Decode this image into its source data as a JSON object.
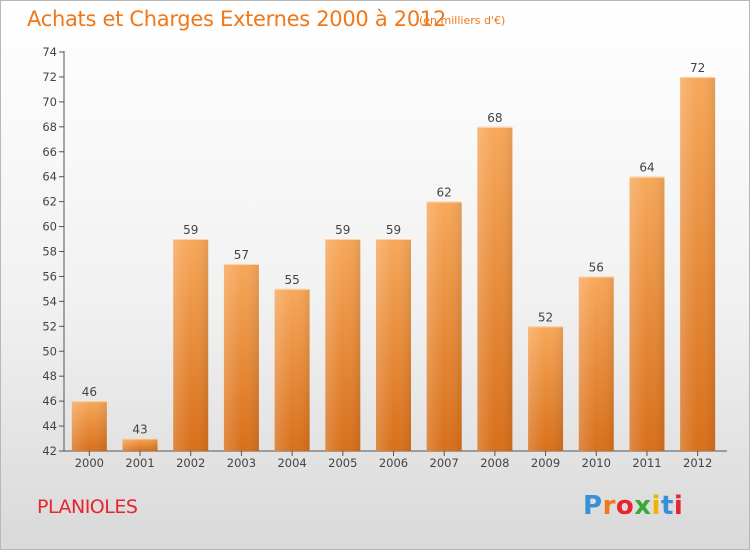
{
  "header": {
    "title": "Achats et Charges Externes 2000 à 2012",
    "unit": "(en milliers d'€)"
  },
  "footer": {
    "commune": "PLANIOLES",
    "brand_letters": [
      "P",
      "r",
      "o",
      "x",
      "i",
      "t",
      "i"
    ]
  },
  "colors": {
    "title": "#f07818",
    "commune": "#e8242f",
    "bar_light": "#f7a85a",
    "bar_dark": "#d86f1a",
    "brand": [
      "#3a8fd8",
      "#f07818",
      "#e8242f",
      "#3aa83a",
      "#f0b400",
      "#3a8fd8",
      "#e8242f"
    ]
  },
  "chart_data": {
    "type": "bar",
    "title": "Achats et Charges Externes 2000 à 2012",
    "xlabel": "",
    "ylabel": "",
    "categories": [
      "2000",
      "2001",
      "2002",
      "2003",
      "2004",
      "2005",
      "2006",
      "2007",
      "2008",
      "2009",
      "2010",
      "2011",
      "2012"
    ],
    "values": [
      46,
      43,
      59,
      57,
      55,
      59,
      59,
      62,
      68,
      52,
      56,
      64,
      72
    ],
    "ylim": [
      42,
      74
    ],
    "yticks": [
      42,
      44,
      46,
      48,
      50,
      52,
      54,
      56,
      58,
      60,
      62,
      64,
      66,
      68,
      70,
      72,
      74
    ],
    "grid": false,
    "data_labels": true
  }
}
